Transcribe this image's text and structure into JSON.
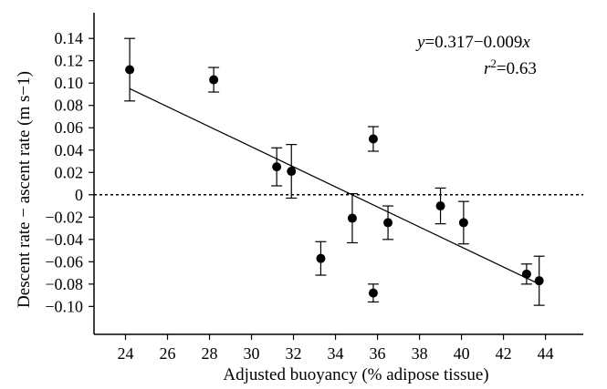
{
  "chart_data": {
    "type": "scatter",
    "xlabel": "Adjusted buoyancy (% adipose tissue)",
    "ylabel": "Descent rate − ascent rate (m s−1)",
    "xlim": [
      22.5,
      45.8
    ],
    "ylim": [
      -0.125,
      0.163
    ],
    "xticks": [
      24,
      26,
      28,
      30,
      32,
      34,
      36,
      38,
      40,
      42,
      44
    ],
    "yticks": [
      -0.1,
      -0.08,
      -0.06,
      -0.04,
      -0.02,
      0,
      0.02,
      0.04,
      0.06,
      0.08,
      0.1,
      0.12,
      0.14
    ],
    "ytick_labels": [
      "−0.10",
      "−0.08",
      "−0.06",
      "−0.04",
      "−0.02",
      "0",
      "0.02",
      "0.04",
      "0.06",
      "0.08",
      "0.10",
      "0.12",
      "0.14"
    ],
    "points": [
      {
        "x": 24.2,
        "y": 0.112,
        "err": 0.028
      },
      {
        "x": 28.2,
        "y": 0.103,
        "err": 0.011
      },
      {
        "x": 31.2,
        "y": 0.025,
        "err": 0.017
      },
      {
        "x": 31.9,
        "y": 0.021,
        "err": 0.024
      },
      {
        "x": 33.3,
        "y": -0.057,
        "err": 0.015
      },
      {
        "x": 34.8,
        "y": -0.021,
        "err": 0.022
      },
      {
        "x": 35.8,
        "y": 0.05,
        "err": 0.011
      },
      {
        "x": 35.8,
        "y": -0.088,
        "err": 0.008
      },
      {
        "x": 36.5,
        "y": -0.025,
        "err": 0.015
      },
      {
        "x": 39.0,
        "y": -0.01,
        "err": 0.016
      },
      {
        "x": 40.1,
        "y": -0.025,
        "err": 0.019
      },
      {
        "x": 43.1,
        "y": -0.071,
        "err": 0.009
      },
      {
        "x": 43.7,
        "y": -0.077,
        "err": 0.022
      }
    ],
    "fit_line": {
      "x": [
        24.2,
        43.7
      ],
      "y": [
        0.095,
        -0.08
      ]
    },
    "reference_line": {
      "y": 0,
      "style": "dashed"
    },
    "equation": {
      "y_var": "y",
      "formula_rest": "=0.317−0.009",
      "x_var": "x",
      "r_var": "r",
      "r_sup": "2",
      "r_value": "=0.63"
    },
    "grid": false,
    "legend": "none"
  }
}
